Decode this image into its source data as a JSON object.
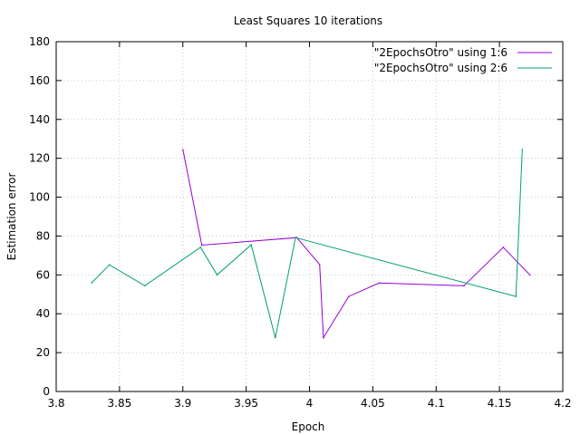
{
  "chart_data": {
    "type": "line",
    "title": "Least Squares 10 iterations",
    "xlabel": "Epoch",
    "ylabel": "Estimation error",
    "xlim": [
      3.8,
      4.2
    ],
    "ylim": [
      0,
      180
    ],
    "xticks": [
      3.8,
      3.85,
      3.9,
      3.95,
      4,
      4.05,
      4.1,
      4.15,
      4.2
    ],
    "xtick_labels": [
      "3.8",
      "3.85",
      "3.9",
      "3.95",
      "4",
      "4.05",
      "4.1",
      "4.15",
      "4.2"
    ],
    "yticks": [
      0,
      20,
      40,
      60,
      80,
      100,
      120,
      140,
      160,
      180
    ],
    "ytick_labels": [
      "0",
      "20",
      "40",
      "60",
      "80",
      "100",
      "120",
      "140",
      "160",
      "180"
    ],
    "grid": true,
    "legend_position": "top-right",
    "series": [
      {
        "name": "\"2EpochsOtro\" using 1:6",
        "color": "#9400d3",
        "x": [
          3.9,
          3.915,
          3.99,
          4.008,
          4.011,
          4.031,
          4.055,
          4.122,
          4.153,
          4.174
        ],
        "y": [
          124.5,
          75.3,
          79.2,
          65.4,
          27.7,
          48.9,
          55.8,
          54.4,
          74.2,
          60.0
        ]
      },
      {
        "name": "\"2EpochsOtro\" using 2:6",
        "color": "#009e73",
        "x": [
          3.828,
          3.842,
          3.87,
          3.914,
          3.927,
          3.954,
          3.973,
          3.989,
          4.163,
          4.168
        ],
        "y": [
          55.9,
          65.2,
          54.4,
          74.2,
          60.0,
          75.5,
          27.7,
          79.2,
          48.9,
          124.5
        ]
      }
    ]
  }
}
